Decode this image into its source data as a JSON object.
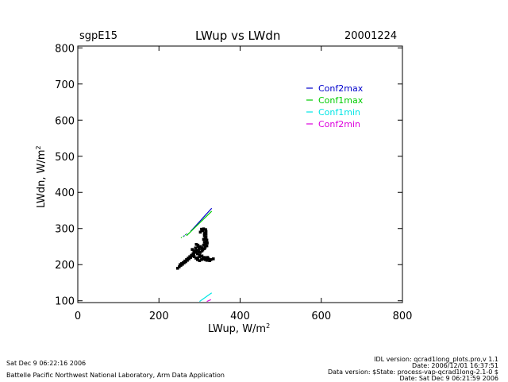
{
  "header": {
    "site": "sgpE15",
    "title": "LWup vs LWdn",
    "date": "20001224"
  },
  "footer": {
    "left_line1": "Sat Dec  9 06:22:16 2006",
    "left_line2": "Battelle Pacific Northwest National Laboratory, Arm Data Application",
    "right_line1": "IDL version: qcrad1long_plots.pro,v 1.1",
    "right_line2": "Date: 2006/12/01 16:37:51",
    "right_line3": "Data version: $State: process-vap-qcrad1long-2.1-0 $",
    "right_line4": "Date: Sat Dec  9 06:21:59 2006"
  },
  "chart_data": {
    "type": "scatter",
    "xlabel": "LWup, W/m",
    "xlabel_sup": "2",
    "ylabel": "LWdn, W/m",
    "ylabel_sup": "2",
    "xlim": [
      0,
      800
    ],
    "ylim": [
      95,
      805
    ],
    "xticks": [
      0,
      200,
      400,
      600,
      800
    ],
    "yticks": [
      100,
      200,
      300,
      400,
      500,
      600,
      700,
      800
    ],
    "legend_position": "top-right",
    "series": [
      {
        "name": "Conf2max",
        "color": "#0000cc",
        "type": "line",
        "points": [
          [
            278,
            292
          ],
          [
            330,
            356
          ]
        ]
      },
      {
        "name": "Conf1max",
        "color": "#00cc00",
        "type": "line",
        "points": [
          [
            268,
            280
          ],
          [
            330,
            348
          ]
        ]
      },
      {
        "name": "Conf1min",
        "color": "#00e5e5",
        "type": "line",
        "points": [
          [
            300,
            98
          ],
          [
            330,
            122
          ]
        ]
      },
      {
        "name": "Conf2min",
        "color": "#dd00dd",
        "type": "line",
        "points": [
          [
            318,
            98
          ],
          [
            328,
            103
          ]
        ]
      }
    ],
    "extra_dots": [
      {
        "color": "#00cc00",
        "points": [
          [
            255,
            275
          ],
          [
            260,
            278
          ],
          [
            265,
            283
          ]
        ]
      },
      {
        "color": "#0000cc",
        "points": [
          [
            262,
            280
          ],
          [
            268,
            285
          ]
        ]
      }
    ],
    "observations": {
      "color": "#000000",
      "points": [
        [
          305,
          298
        ],
        [
          310,
          299
        ],
        [
          315,
          297
        ],
        [
          316,
          292
        ],
        [
          314,
          288
        ],
        [
          316,
          284
        ],
        [
          312,
          280
        ],
        [
          316,
          276
        ],
        [
          314,
          272
        ],
        [
          318,
          268
        ],
        [
          316,
          264
        ],
        [
          319,
          260
        ],
        [
          315,
          256
        ],
        [
          318,
          252
        ],
        [
          314,
          248
        ],
        [
          312,
          244
        ],
        [
          308,
          241
        ],
        [
          306,
          238
        ],
        [
          302,
          234
        ],
        [
          298,
          236
        ],
        [
          294,
          240
        ],
        [
          299,
          244
        ],
        [
          302,
          250
        ],
        [
          296,
          254
        ],
        [
          292,
          256
        ],
        [
          296,
          250
        ],
        [
          290,
          246
        ],
        [
          292,
          238
        ],
        [
          288,
          234
        ],
        [
          286,
          228
        ],
        [
          282,
          224
        ],
        [
          278,
          220
        ],
        [
          274,
          216
        ],
        [
          270,
          212
        ],
        [
          266,
          208
        ],
        [
          262,
          205
        ],
        [
          258,
          201
        ],
        [
          254,
          198
        ],
        [
          250,
          194
        ],
        [
          246,
          190
        ],
        [
          256,
          203
        ],
        [
          264,
          210
        ],
        [
          272,
          218
        ],
        [
          280,
          226
        ],
        [
          287,
          222
        ],
        [
          291,
          218
        ],
        [
          295,
          214
        ],
        [
          300,
          211
        ],
        [
          305,
          214
        ],
        [
          310,
          216
        ],
        [
          316,
          218
        ],
        [
          322,
          216
        ],
        [
          328,
          214
        ],
        [
          334,
          216
        ],
        [
          325,
          211
        ],
        [
          318,
          212
        ],
        [
          312,
          220
        ],
        [
          306,
          224
        ],
        [
          300,
          226
        ],
        [
          295,
          230
        ],
        [
          290,
          234
        ],
        [
          286,
          238
        ],
        [
          282,
          242
        ],
        [
          300,
          222
        ],
        [
          296,
          219
        ],
        [
          308,
          219
        ],
        [
          314,
          214
        ],
        [
          320,
          220
        ],
        [
          302,
          290
        ],
        [
          308,
          294
        ],
        [
          312,
          286
        ],
        [
          310,
          270
        ],
        [
          312,
          262
        ],
        [
          310,
          254
        ],
        [
          306,
          246
        ],
        [
          284,
          230
        ],
        [
          276,
          222
        ],
        [
          268,
          214
        ],
        [
          260,
          206
        ],
        [
          252,
          200
        ]
      ]
    }
  }
}
